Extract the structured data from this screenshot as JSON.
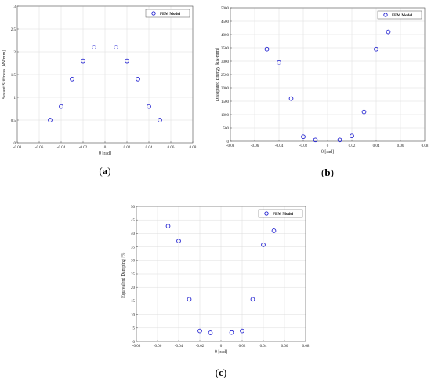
{
  "chart_data": [
    {
      "type": "scatter",
      "panel_label": "a",
      "xlabel": "θ [rad]",
      "ylabel": "Secant Stiffness [kN/mm]",
      "xlim": [
        -0.08,
        0.08
      ],
      "ylim": [
        0,
        3
      ],
      "x_ticks": [
        "-0.08",
        "-0.06",
        "-0.04",
        "-0.02",
        "0",
        "0.02",
        "0.04",
        "0.06",
        "0.08"
      ],
      "y_ticks": [
        "0",
        "0.5",
        "1",
        "1.5",
        "2",
        "2.5",
        "3"
      ],
      "grid": true,
      "legend_position": "top-right",
      "marker_color": "#1f1fd0",
      "series": [
        {
          "name": "FEM Model",
          "points": [
            {
              "x": -0.05,
              "y": 0.5
            },
            {
              "x": -0.04,
              "y": 0.8
            },
            {
              "x": -0.03,
              "y": 1.4
            },
            {
              "x": -0.02,
              "y": 1.8
            },
            {
              "x": -0.01,
              "y": 2.1
            },
            {
              "x": 0.01,
              "y": 2.1
            },
            {
              "x": 0.02,
              "y": 1.8
            },
            {
              "x": 0.03,
              "y": 1.4
            },
            {
              "x": 0.04,
              "y": 0.8
            },
            {
              "x": 0.05,
              "y": 0.5
            }
          ]
        }
      ]
    },
    {
      "type": "scatter",
      "panel_label": "b",
      "xlabel": "θ [rad]",
      "ylabel": "Dissipated Energy [kN·mm]",
      "xlim": [
        -0.08,
        0.08
      ],
      "ylim": [
        0,
        5000
      ],
      "x_ticks": [
        "-0.08",
        "-0.06",
        "-0.04",
        "-0.02",
        "0",
        "0.02",
        "0.04",
        "0.06",
        "0.08"
      ],
      "y_ticks": [
        "0",
        "500",
        "1000",
        "1500",
        "2000",
        "2500",
        "3000",
        "3500",
        "4000",
        "4500",
        "5000"
      ],
      "grid": true,
      "legend_position": "top-right",
      "marker_color": "#1f1fd0",
      "series": [
        {
          "name": "FEM Model",
          "points": [
            {
              "x": -0.05,
              "y": 3450
            },
            {
              "x": -0.04,
              "y": 2950
            },
            {
              "x": -0.03,
              "y": 1600
            },
            {
              "x": -0.02,
              "y": 170
            },
            {
              "x": -0.01,
              "y": 50
            },
            {
              "x": 0.01,
              "y": 50
            },
            {
              "x": 0.02,
              "y": 200
            },
            {
              "x": 0.03,
              "y": 1100
            },
            {
              "x": 0.04,
              "y": 3450
            },
            {
              "x": 0.05,
              "y": 4100
            }
          ]
        }
      ]
    },
    {
      "type": "scatter",
      "panel_label": "c",
      "xlabel": "θ [rad]",
      "ylabel": "Equivalent Damping [% ]",
      "xlim": [
        -0.08,
        0.08
      ],
      "ylim": [
        0,
        50
      ],
      "x_ticks": [
        "-0.08",
        "-0.06",
        "-0.04",
        "-0.02",
        "0",
        "0.02",
        "0.04",
        "0.06",
        "0.08"
      ],
      "y_ticks": [
        "0",
        "5",
        "10",
        "15",
        "20",
        "25",
        "30",
        "35",
        "40",
        "45",
        "50"
      ],
      "grid": true,
      "legend_position": "top-right",
      "marker_color": "#1f1fd0",
      "series": [
        {
          "name": "FEM Model",
          "points": [
            {
              "x": -0.05,
              "y": 42.7
            },
            {
              "x": -0.04,
              "y": 37.2
            },
            {
              "x": -0.03,
              "y": 15.6
            },
            {
              "x": -0.02,
              "y": 3.9
            },
            {
              "x": -0.01,
              "y": 3.2
            },
            {
              "x": 0.01,
              "y": 3.3
            },
            {
              "x": 0.02,
              "y": 3.9
            },
            {
              "x": 0.03,
              "y": 15.6
            },
            {
              "x": 0.04,
              "y": 35.8
            },
            {
              "x": 0.05,
              "y": 41.0
            }
          ]
        }
      ]
    }
  ]
}
